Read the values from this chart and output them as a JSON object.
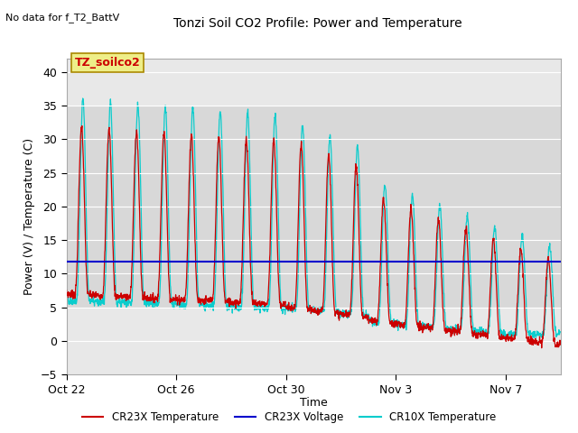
{
  "title": "Tonzi Soil CO2 Profile: Power and Temperature",
  "top_left_note": "No data for f_T2_BattV",
  "ylabel": "Power (V) / Temperature (C)",
  "xlabel": "Time",
  "ylim": [
    -5,
    42
  ],
  "yticks": [
    -5,
    0,
    5,
    10,
    15,
    20,
    25,
    30,
    35,
    40
  ],
  "xtick_labels": [
    "Oct 22",
    "Oct 26",
    "Oct 30",
    "Nov 3",
    "Nov 7"
  ],
  "xtick_positions": [
    0,
    4,
    8,
    12,
    16
  ],
  "annotation_box": "TZ_soilco2",
  "annotation_box_facecolor": "#eeee88",
  "annotation_box_edgecolor": "#aa8800",
  "annotation_text_color": "#cc0000",
  "voltage_line_y": 11.8,
  "voltage_line_color": "#0000cc",
  "bg_color": "#ffffff",
  "plot_bg_color": "#e8e8e8",
  "cr23x_temp_color": "#cc0000",
  "cr10x_temp_color": "#00cccc",
  "legend_entries": [
    "CR23X Temperature",
    "CR23X Voltage",
    "CR10X Temperature"
  ],
  "legend_colors": [
    "#cc0000",
    "#0000cc",
    "#00cccc"
  ],
  "total_days": 18,
  "n_points": 2000,
  "grid_color": "#ffffff",
  "band_color": "#d8d8d8",
  "band_ranges": [
    [
      25,
      35
    ],
    [
      15,
      25
    ],
    [
      5,
      15
    ]
  ]
}
